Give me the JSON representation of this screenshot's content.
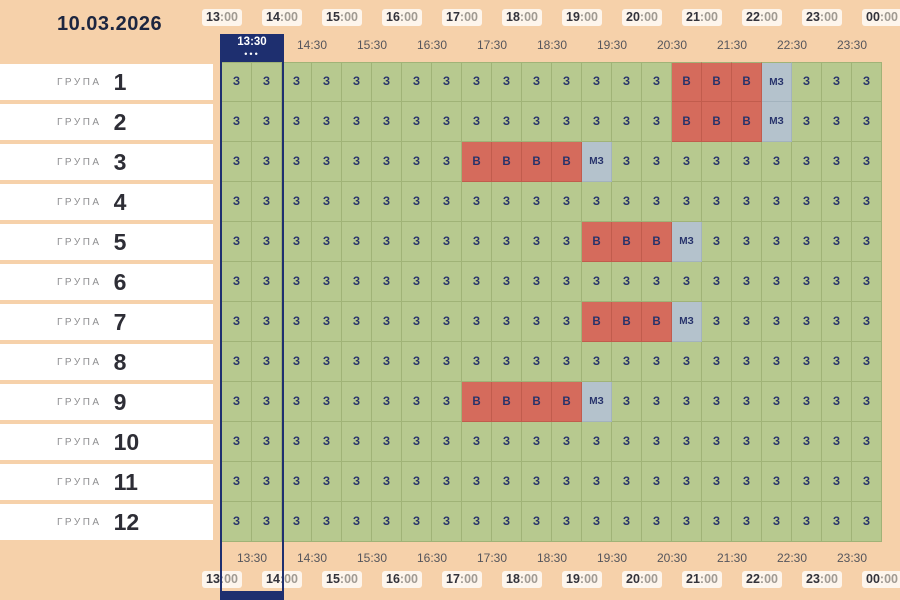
{
  "date": "10.03.2026",
  "timeline": {
    "hours": [
      "13:00",
      "14:00",
      "15:00",
      "16:00",
      "17:00",
      "18:00",
      "19:00",
      "20:00",
      "21:00",
      "22:00",
      "23:00",
      "00:00"
    ],
    "half_hours": [
      "13:30",
      "14:30",
      "15:30",
      "16:30",
      "17:30",
      "18:30",
      "19:30",
      "20:30",
      "21:30",
      "22:30",
      "23:30"
    ],
    "current_marker": {
      "time": "13:30",
      "dots": "•••"
    }
  },
  "colors": {
    "background": "#f6d1aa",
    "row_label_bg": "#ffffff",
    "cell_on": "#b7c98f",
    "cell_off": "#d56b5c",
    "cell_maybe": "#b4c2cc",
    "cell_text": "#27336b",
    "marker": "#1e2f6f"
  },
  "groups": [
    {
      "label": "ГРУПА",
      "number": "1",
      "slots": [
        "З",
        "З",
        "З",
        "З",
        "З",
        "З",
        "З",
        "З",
        "З",
        "З",
        "З",
        "З",
        "З",
        "З",
        "З",
        "В",
        "В",
        "В",
        "МЗ",
        "З",
        "З",
        "З"
      ]
    },
    {
      "label": "ГРУПА",
      "number": "2",
      "slots": [
        "З",
        "З",
        "З",
        "З",
        "З",
        "З",
        "З",
        "З",
        "З",
        "З",
        "З",
        "З",
        "З",
        "З",
        "З",
        "В",
        "В",
        "В",
        "МЗ",
        "З",
        "З",
        "З"
      ]
    },
    {
      "label": "ГРУПА",
      "number": "3",
      "slots": [
        "З",
        "З",
        "З",
        "З",
        "З",
        "З",
        "З",
        "З",
        "В",
        "В",
        "В",
        "В",
        "МЗ",
        "З",
        "З",
        "З",
        "З",
        "З",
        "З",
        "З",
        "З",
        "З"
      ]
    },
    {
      "label": "ГРУПА",
      "number": "4",
      "slots": [
        "З",
        "З",
        "З",
        "З",
        "З",
        "З",
        "З",
        "З",
        "З",
        "З",
        "З",
        "З",
        "З",
        "З",
        "З",
        "З",
        "З",
        "З",
        "З",
        "З",
        "З",
        "З"
      ]
    },
    {
      "label": "ГРУПА",
      "number": "5",
      "slots": [
        "З",
        "З",
        "З",
        "З",
        "З",
        "З",
        "З",
        "З",
        "З",
        "З",
        "З",
        "З",
        "В",
        "В",
        "В",
        "МЗ",
        "З",
        "З",
        "З",
        "З",
        "З",
        "З"
      ]
    },
    {
      "label": "ГРУПА",
      "number": "6",
      "slots": [
        "З",
        "З",
        "З",
        "З",
        "З",
        "З",
        "З",
        "З",
        "З",
        "З",
        "З",
        "З",
        "З",
        "З",
        "З",
        "З",
        "З",
        "З",
        "З",
        "З",
        "З",
        "З"
      ]
    },
    {
      "label": "ГРУПА",
      "number": "7",
      "slots": [
        "З",
        "З",
        "З",
        "З",
        "З",
        "З",
        "З",
        "З",
        "З",
        "З",
        "З",
        "З",
        "В",
        "В",
        "В",
        "МЗ",
        "З",
        "З",
        "З",
        "З",
        "З",
        "З"
      ]
    },
    {
      "label": "ГРУПА",
      "number": "8",
      "slots": [
        "З",
        "З",
        "З",
        "З",
        "З",
        "З",
        "З",
        "З",
        "З",
        "З",
        "З",
        "З",
        "З",
        "З",
        "З",
        "З",
        "З",
        "З",
        "З",
        "З",
        "З",
        "З"
      ]
    },
    {
      "label": "ГРУПА",
      "number": "9",
      "slots": [
        "З",
        "З",
        "З",
        "З",
        "З",
        "З",
        "З",
        "З",
        "В",
        "В",
        "В",
        "В",
        "МЗ",
        "З",
        "З",
        "З",
        "З",
        "З",
        "З",
        "З",
        "З",
        "З"
      ]
    },
    {
      "label": "ГРУПА",
      "number": "10",
      "slots": [
        "З",
        "З",
        "З",
        "З",
        "З",
        "З",
        "З",
        "З",
        "З",
        "З",
        "З",
        "З",
        "З",
        "З",
        "З",
        "З",
        "З",
        "З",
        "З",
        "З",
        "З",
        "З"
      ]
    },
    {
      "label": "ГРУПА",
      "number": "11",
      "slots": [
        "З",
        "З",
        "З",
        "З",
        "З",
        "З",
        "З",
        "З",
        "З",
        "З",
        "З",
        "З",
        "З",
        "З",
        "З",
        "З",
        "З",
        "З",
        "З",
        "З",
        "З",
        "З"
      ]
    },
    {
      "label": "ГРУПА",
      "number": "12",
      "slots": [
        "З",
        "З",
        "З",
        "З",
        "З",
        "З",
        "З",
        "З",
        "З",
        "З",
        "З",
        "З",
        "З",
        "З",
        "З",
        "З",
        "З",
        "З",
        "З",
        "З",
        "З",
        "З"
      ]
    }
  ]
}
